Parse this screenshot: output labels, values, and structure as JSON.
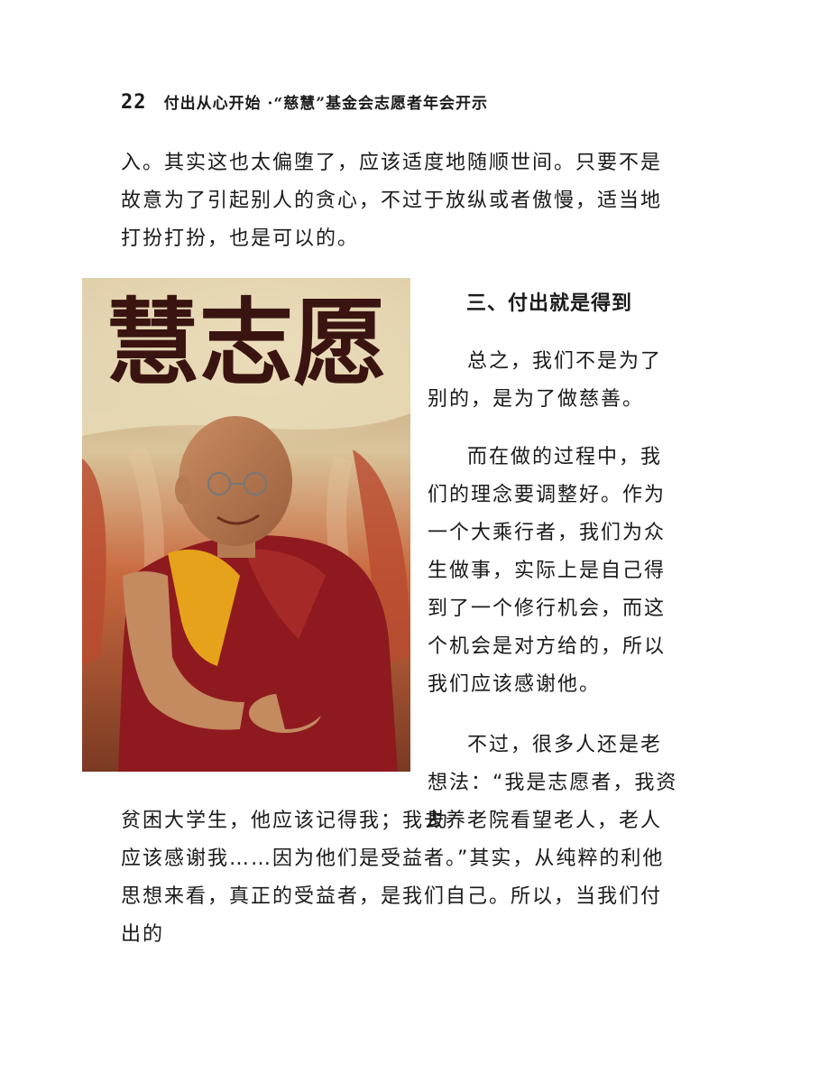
{
  "header": {
    "page_number": "22",
    "running_title": "付出从心开始 ·“慈慧”基金会志愿者年会开示"
  },
  "body": {
    "top_paragraph": "入。其实这也太偏堕了，应该适度地随顺世间。只要不是故意为了引起别人的贪心，不过于放纵或者傲慢，适当地打扮打扮，也是可以的。",
    "section_heading": "三、付出就是得到",
    "para_1": "总之，我们不是为了别的，是为了做慈善。",
    "para_2": "而在做的过程中，我们的理念要调整好。作为一个大乘行者，我们为众生做事，实际上是自己得到了一个修行机会，而这个机会是对方给的，所以我们应该感谢他。",
    "para_3": "不过，很多人还是老想法：“我是志愿者，我资助",
    "bottom_paragraph": "贫困大学生，他应该记得我；我去养老院看望老人，老人应该感谢我……因为他们是受益者。”其实，从纯粹的利他思想来看，真正的受益者，是我们自己。所以，当我们付出的"
  },
  "photo": {
    "banner_text": "慧志愿"
  },
  "colors": {
    "robe_red": "#8e1a1f",
    "robe_yellow": "#e6a21a",
    "banner_cream": "#efe3c8",
    "banner_text": "#3a1410",
    "stage_red": "#c4563a"
  }
}
